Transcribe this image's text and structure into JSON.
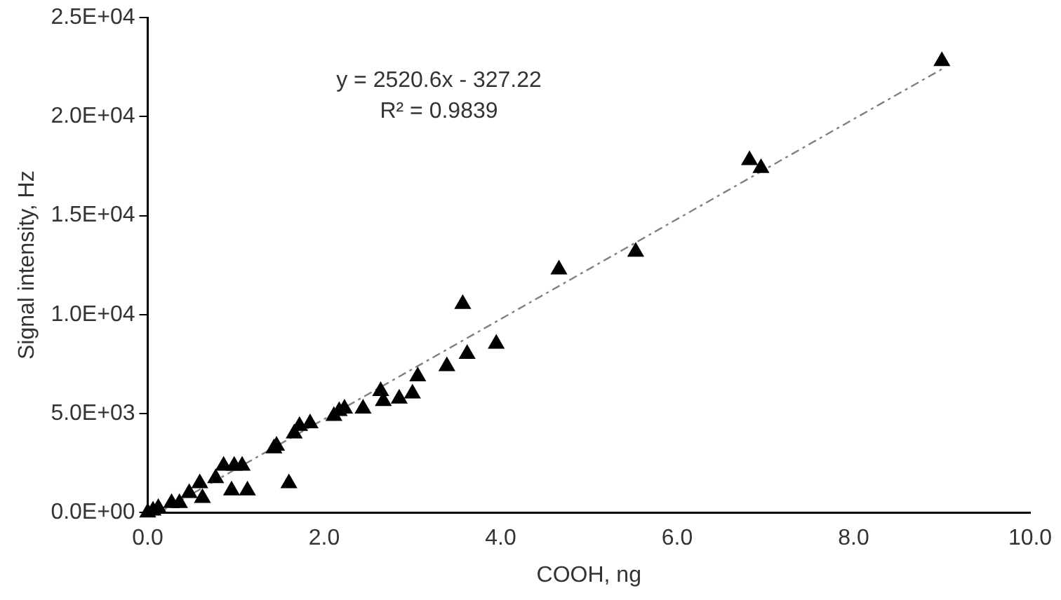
{
  "chart_data": {
    "type": "scatter",
    "xlabel": "COOH, ng",
    "ylabel": "Signal intensity, Hz",
    "x": [
      0,
      0.06,
      0.12,
      0.27,
      0.36,
      0.47,
      0.59,
      0.62,
      0.77,
      0.86,
      0.95,
      0.98,
      1.07,
      1.13,
      1.43,
      1.46,
      1.6,
      1.66,
      1.72,
      1.84,
      2.11,
      2.17,
      2.23,
      2.44,
      2.64,
      2.67,
      2.85,
      3.0,
      3.06,
      3.39,
      3.57,
      3.62,
      3.95,
      4.66,
      5.53,
      6.82,
      6.95,
      9.0
    ],
    "series": [
      {
        "color": "#000000",
        "marker": "triangle",
        "values": [
          0,
          100,
          230,
          480,
          480,
          980,
          1480,
          730,
          1730,
          2360,
          1110,
          2360,
          2360,
          1110,
          3240,
          3370,
          1480,
          3990,
          4370,
          4500,
          4880,
          5120,
          5250,
          5250,
          6130,
          5630,
          5750,
          6010,
          6880,
          7390,
          10530,
          8010,
          8520,
          12280,
          13170,
          17800,
          17400,
          22800
        ]
      },
      {
        "type": "line",
        "color": "#808080",
        "line_style": "dashed",
        "x": [
          0.13,
          9.0
        ],
        "values": [
          0,
          22400
        ]
      }
    ],
    "xlim": [
      0,
      10
    ],
    "xticks": [
      {
        "value": 0,
        "label": "0.0"
      },
      {
        "value": 2,
        "label": "2.0"
      },
      {
        "value": 4,
        "label": "4.0"
      },
      {
        "value": 6,
        "label": "6.0"
      },
      {
        "value": 8,
        "label": "8.0"
      },
      {
        "value": 10,
        "label": "10.0"
      }
    ],
    "ylim": [
      0,
      25000
    ],
    "yticks": [
      {
        "value": 0,
        "label": "0.0E+00"
      },
      {
        "value": 5000,
        "label": "5.0E+03"
      },
      {
        "value": 10000,
        "label": "1.0E+04"
      },
      {
        "value": 15000,
        "label": "1.5E+04"
      },
      {
        "value": 20000,
        "label": "2.0E+04"
      },
      {
        "value": 25000,
        "label": "2.5E+04"
      }
    ],
    "annotations": [
      "y = 2520.6x - 327.22",
      "R² = 0.9839"
    ],
    "legend": false,
    "grid": false
  }
}
